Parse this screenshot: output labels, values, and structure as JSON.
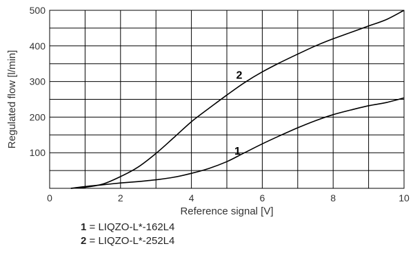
{
  "chart_data": {
    "type": "line",
    "xlabel": "Reference signal [V]",
    "ylabel": "Regulated flow [l/min]",
    "xlim": [
      0,
      10
    ],
    "ylim": [
      0,
      500
    ],
    "x_ticks": [
      "0",
      "2",
      "4",
      "6",
      "8",
      "10"
    ],
    "y_ticks": [
      "100",
      "200",
      "300",
      "400",
      "500"
    ],
    "grid": true,
    "series": [
      {
        "name": "1",
        "label": "LIQZO-L*-162L4",
        "x": [
          0.6,
          1.0,
          1.5,
          2.0,
          2.5,
          3.0,
          3.5,
          4.0,
          4.5,
          5.0,
          5.5,
          6.0,
          6.5,
          7.0,
          7.5,
          8.0,
          8.5,
          9.0,
          9.5,
          10.0
        ],
        "y": [
          0,
          5,
          10,
          15,
          19,
          24,
          31,
          42,
          56,
          75,
          100,
          125,
          148,
          170,
          190,
          207,
          220,
          232,
          241,
          254
        ]
      },
      {
        "name": "2",
        "label": "LIQZO-L*-252L4",
        "x": [
          0.6,
          1.0,
          1.5,
          2.0,
          2.5,
          3.0,
          3.5,
          4.0,
          4.5,
          5.0,
          5.5,
          6.0,
          6.5,
          7.0,
          7.5,
          8.0,
          8.5,
          9.0,
          9.5,
          10.0
        ],
        "y": [
          0,
          3,
          12,
          33,
          60,
          98,
          142,
          187,
          225,
          262,
          297,
          327,
          353,
          377,
          400,
          420,
          438,
          456,
          474,
          500
        ]
      }
    ]
  },
  "legend": [
    {
      "num": "1",
      "sep": " = ",
      "label": "LIQZO-L*-162L4"
    },
    {
      "num": "2",
      "sep": " = ",
      "label": "LIQZO-L*-252L4"
    }
  ]
}
